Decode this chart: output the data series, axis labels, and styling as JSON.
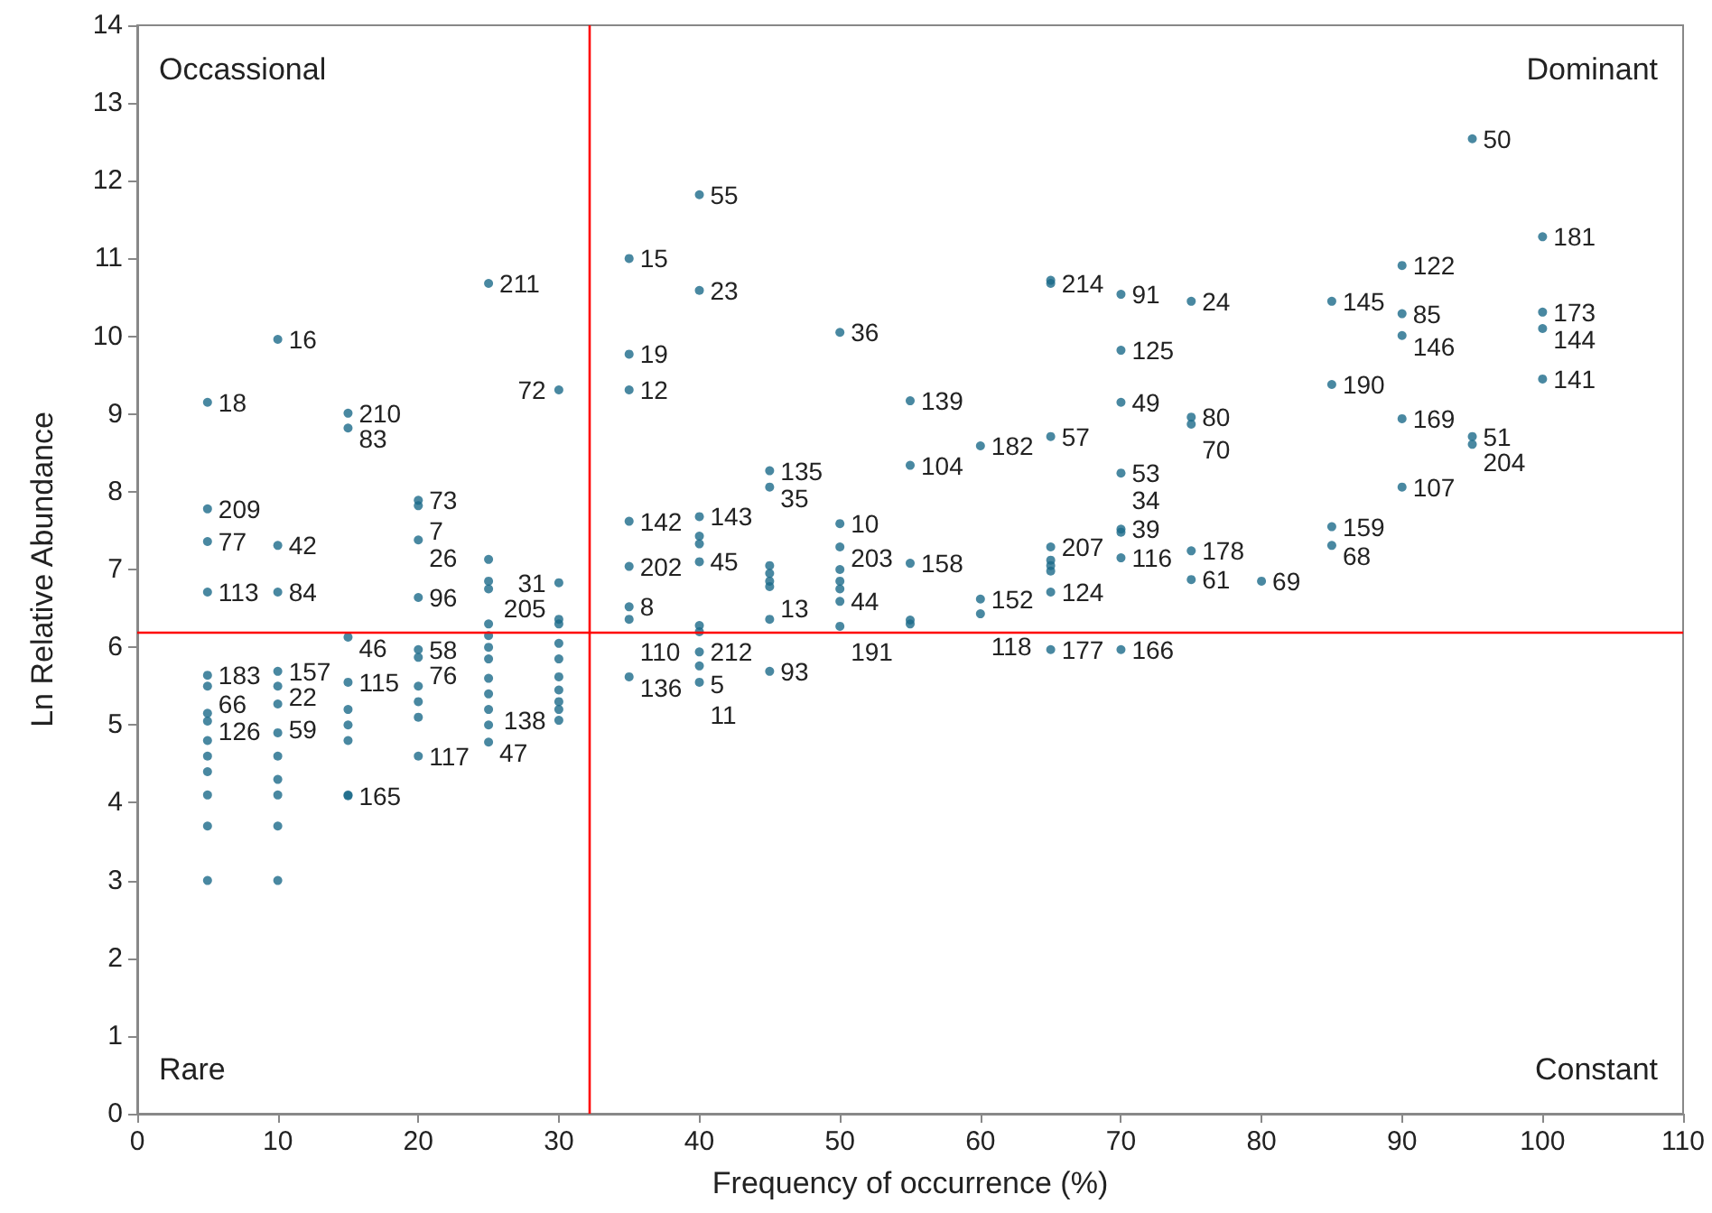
{
  "chart_data": {
    "type": "scatter",
    "xlabel": "Frequency of occurrence (%)",
    "ylabel": "Ln Relative Abundance",
    "annotations": [
      "Occassional",
      "Dominant",
      "Rare",
      "Constant",
      {
        "text": "50",
        "x": 95,
        "y": 12.54
      },
      {
        "text": "181",
        "x": 100,
        "y": 11.28
      },
      {
        "text": "122",
        "x": 90,
        "y": 10.91
      },
      {
        "text": "145",
        "x": 85,
        "y": 10.45
      },
      {
        "text": "85",
        "x": 90,
        "y": 10.29
      },
      {
        "text": "146",
        "x": 90,
        "y": 10.01
      },
      {
        "text": "173",
        "x": 100,
        "y": 10.31
      },
      {
        "text": "144",
        "x": 100,
        "y": 10.1
      },
      {
        "text": "141",
        "x": 100,
        "y": 9.45
      },
      {
        "text": "190",
        "x": 85,
        "y": 9.38
      },
      {
        "text": "169",
        "x": 90,
        "y": 8.94
      },
      {
        "text": "51",
        "x": 95,
        "y": 8.71
      },
      {
        "text": "204",
        "x": 95,
        "y": 8.61
      },
      {
        "text": "107",
        "x": 90,
        "y": 8.06
      },
      {
        "text": "159",
        "x": 85,
        "y": 7.55
      },
      {
        "text": "68",
        "x": 85,
        "y": 7.31
      },
      {
        "text": "69",
        "x": 80,
        "y": 6.85
      },
      {
        "text": "61",
        "x": 75,
        "y": 6.87
      },
      {
        "text": "178",
        "x": 75,
        "y": 7.24
      },
      {
        "text": "116",
        "x": 70,
        "y": 7.15
      },
      {
        "text": "39",
        "x": 70,
        "y": 7.52
      },
      {
        "text": "34",
        "x": 70,
        "y": 7.48
      },
      {
        "text": "53",
        "x": 70,
        "y": 8.24
      },
      {
        "text": "49",
        "x": 70,
        "y": 9.15
      },
      {
        "text": "125",
        "x": 70,
        "y": 9.82
      },
      {
        "text": "91",
        "x": 70,
        "y": 10.54
      },
      {
        "text": "24",
        "x": 75,
        "y": 10.45
      },
      {
        "text": "80",
        "x": 75,
        "y": 8.96
      },
      {
        "text": "70",
        "x": 75,
        "y": 8.87
      },
      {
        "text": "57",
        "x": 65,
        "y": 8.71
      },
      {
        "text": "214",
        "x": 65,
        "y": 10.68
      },
      {
        "text": "177",
        "x": 65,
        "y": 5.97
      },
      {
        "text": "166",
        "x": 70,
        "y": 5.97
      },
      {
        "text": "124",
        "x": 65,
        "y": 6.71
      },
      {
        "text": "207",
        "x": 65,
        "y": 7.29
      },
      {
        "text": "182",
        "x": 60,
        "y": 8.59
      },
      {
        "text": "139",
        "x": 55,
        "y": 9.17
      },
      {
        "text": "104",
        "x": 55,
        "y": 8.34
      },
      {
        "text": "36",
        "x": 50,
        "y": 10.05
      },
      {
        "text": "55",
        "x": 40,
        "y": 11.82
      },
      {
        "text": "15",
        "x": 35,
        "y": 11.0
      },
      {
        "text": "23",
        "x": 40,
        "y": 10.59
      },
      {
        "text": "19",
        "x": 35,
        "y": 9.77
      },
      {
        "text": "12",
        "x": 35,
        "y": 9.31
      },
      {
        "text": "72",
        "x": 30,
        "y": 9.31
      },
      {
        "text": "135",
        "x": 45,
        "y": 8.27
      },
      {
        "text": "35",
        "x": 45,
        "y": 8.06
      },
      {
        "text": "142",
        "x": 35,
        "y": 7.62
      },
      {
        "text": "143",
        "x": 40,
        "y": 7.68
      },
      {
        "text": "45",
        "x": 40,
        "y": 7.1
      },
      {
        "text": "202",
        "x": 35,
        "y": 7.04
      },
      {
        "text": "10",
        "x": 50,
        "y": 7.59
      },
      {
        "text": "203",
        "x": 50,
        "y": 7.29
      },
      {
        "text": "158",
        "x": 55,
        "y": 7.08
      },
      {
        "text": "44",
        "x": 50,
        "y": 6.59
      },
      {
        "text": "152",
        "x": 60,
        "y": 6.62
      },
      {
        "text": "118",
        "x": 60,
        "y": 6.43
      },
      {
        "text": "13",
        "x": 45,
        "y": 6.36
      },
      {
        "text": "191",
        "x": 50,
        "y": 6.27
      },
      {
        "text": "8",
        "x": 35,
        "y": 6.52
      },
      {
        "text": "110",
        "x": 35,
        "y": 6.36
      },
      {
        "text": "205",
        "x": 30,
        "y": 6.36
      },
      {
        "text": "31",
        "x": 30,
        "y": 6.83
      },
      {
        "text": "136",
        "x": 35,
        "y": 5.62
      },
      {
        "text": "212",
        "x": 40,
        "y": 5.94
      },
      {
        "text": "5",
        "x": 40,
        "y": 5.76
      },
      {
        "text": "11",
        "x": 40,
        "y": 5.55
      },
      {
        "text": "93",
        "x": 45,
        "y": 5.69
      },
      {
        "text": "138",
        "x": 30,
        "y": 5.06
      },
      {
        "text": "209",
        "x": 5,
        "y": 7.78
      },
      {
        "text": "77",
        "x": 5,
        "y": 7.36
      },
      {
        "text": "42",
        "x": 10,
        "y": 7.31
      },
      {
        "text": "113",
        "x": 5,
        "y": 6.71
      },
      {
        "text": "84",
        "x": 10,
        "y": 6.71
      },
      {
        "text": "18",
        "x": 5,
        "y": 9.15
      },
      {
        "text": "16",
        "x": 10,
        "y": 9.96
      },
      {
        "text": "210",
        "x": 15,
        "y": 9.01
      },
      {
        "text": "83",
        "x": 15,
        "y": 8.82
      },
      {
        "text": "211",
        "x": 25,
        "y": 10.68
      },
      {
        "text": "73",
        "x": 20,
        "y": 7.89
      },
      {
        "text": "7",
        "x": 20,
        "y": 7.82
      },
      {
        "text": "26",
        "x": 20,
        "y": 7.38
      },
      {
        "text": "96",
        "x": 20,
        "y": 6.64
      },
      {
        "text": "46",
        "x": 15,
        "y": 6.13
      },
      {
        "text": "58",
        "x": 20,
        "y": 5.97
      },
      {
        "text": "76",
        "x": 20,
        "y": 5.87
      },
      {
        "text": "115",
        "x": 15,
        "y": 5.55
      },
      {
        "text": "183",
        "x": 5,
        "y": 5.64
      },
      {
        "text": "66",
        "x": 5,
        "y": 5.5
      },
      {
        "text": "157",
        "x": 10,
        "y": 5.69
      },
      {
        "text": "22",
        "x": 10,
        "y": 5.5
      },
      {
        "text": "59",
        "x": 10,
        "y": 5.27
      },
      {
        "text": "117",
        "x": 20,
        "y": 4.6
      },
      {
        "text": "165",
        "x": 15,
        "y": 4.09
      },
      {
        "text": "47",
        "x": 25,
        "y": 4.78
      },
      {
        "text": "126",
        "x": 5,
        "y": 5.15
      }
    ],
    "xlim": [
      0,
      110
    ],
    "xticks": [
      0,
      10,
      20,
      30,
      40,
      50,
      60,
      70,
      80,
      90,
      100,
      110
    ],
    "ylim": [
      0,
      14
    ],
    "yticks": [
      0,
      1,
      2,
      3,
      4,
      5,
      6,
      7,
      8,
      9,
      10,
      11,
      12,
      13,
      14
    ],
    "marker": "circle",
    "ref_lines": [
      {
        "axis": "x",
        "value": 32.1,
        "color": "#ff0000"
      },
      {
        "axis": "y",
        "value": 6.2,
        "color": "#ff0000"
      }
    ],
    "series": [
      {
        "color": "#1b6a8a",
        "x": [
          95,
          100,
          90,
          85,
          90,
          90,
          100,
          100,
          100,
          85,
          90,
          95,
          95,
          90,
          85,
          85,
          80,
          75,
          75,
          70,
          70,
          70,
          70,
          70,
          70,
          70,
          75,
          75,
          75,
          65,
          65,
          65,
          65,
          70,
          65,
          65,
          65,
          65,
          65,
          60,
          55,
          55,
          50,
          40,
          35,
          40,
          35,
          35,
          30,
          45,
          45,
          35,
          40,
          40,
          40,
          40,
          35,
          50,
          50,
          55,
          45,
          45,
          45,
          45,
          50,
          50,
          50,
          50,
          60,
          60,
          45,
          50,
          55,
          55,
          35,
          35,
          30,
          30,
          35,
          40,
          40,
          40,
          45,
          40,
          40,
          30,
          30,
          30,
          30,
          30,
          30,
          30,
          5,
          5,
          10,
          5,
          10,
          5,
          10,
          15,
          15,
          25,
          20,
          20,
          20,
          20,
          15,
          20,
          20,
          15,
          5,
          5,
          10,
          10,
          10,
          20,
          15,
          25,
          5,
          5,
          5,
          5,
          5,
          5,
          5,
          5,
          10,
          10,
          10,
          10,
          10,
          10,
          15,
          15,
          15,
          15,
          20,
          20,
          20,
          25,
          25,
          25,
          25,
          25,
          25,
          25,
          25,
          25,
          25,
          25,
          30
        ],
        "values": [
          12.54,
          11.28,
          10.91,
          10.45,
          10.29,
          10.01,
          10.31,
          10.1,
          9.45,
          9.38,
          8.94,
          8.71,
          8.61,
          8.06,
          7.55,
          7.31,
          6.85,
          6.87,
          7.24,
          7.15,
          7.52,
          7.48,
          8.24,
          9.15,
          9.82,
          10.54,
          10.45,
          8.96,
          8.87,
          8.71,
          10.68,
          10.72,
          5.97,
          5.97,
          6.71,
          7.29,
          7.12,
          7.05,
          6.98,
          8.59,
          9.17,
          8.34,
          10.05,
          11.82,
          11.0,
          10.59,
          9.77,
          9.31,
          9.31,
          8.27,
          8.06,
          7.62,
          7.68,
          7.43,
          7.33,
          7.1,
          7.04,
          7.59,
          7.29,
          7.08,
          7.05,
          6.95,
          6.85,
          6.78,
          7.0,
          6.85,
          6.75,
          6.59,
          6.62,
          6.43,
          6.36,
          6.27,
          6.3,
          6.35,
          6.52,
          6.36,
          6.36,
          6.83,
          5.62,
          5.94,
          5.76,
          5.55,
          5.69,
          6.28,
          6.2,
          5.06,
          6.05,
          5.85,
          5.62,
          5.45,
          5.3,
          5.2,
          7.78,
          7.36,
          7.31,
          6.71,
          6.71,
          9.15,
          9.96,
          9.01,
          8.82,
          10.68,
          7.89,
          7.82,
          7.38,
          6.64,
          6.13,
          5.97,
          5.87,
          5.55,
          5.64,
          5.5,
          5.69,
          5.5,
          5.27,
          4.6,
          4.09,
          4.78,
          5.15,
          5.05,
          4.8,
          4.6,
          4.4,
          4.1,
          3.7,
          3.0,
          3.0,
          3.7,
          4.1,
          4.3,
          4.6,
          4.9,
          4.8,
          5.0,
          5.2,
          4.1,
          5.5,
          5.3,
          5.1,
          7.13,
          6.85,
          6.75,
          6.3,
          6.15,
          6.0,
          5.85,
          5.6,
          5.4,
          5.2,
          5.0,
          6.3
        ]
      }
    ]
  }
}
